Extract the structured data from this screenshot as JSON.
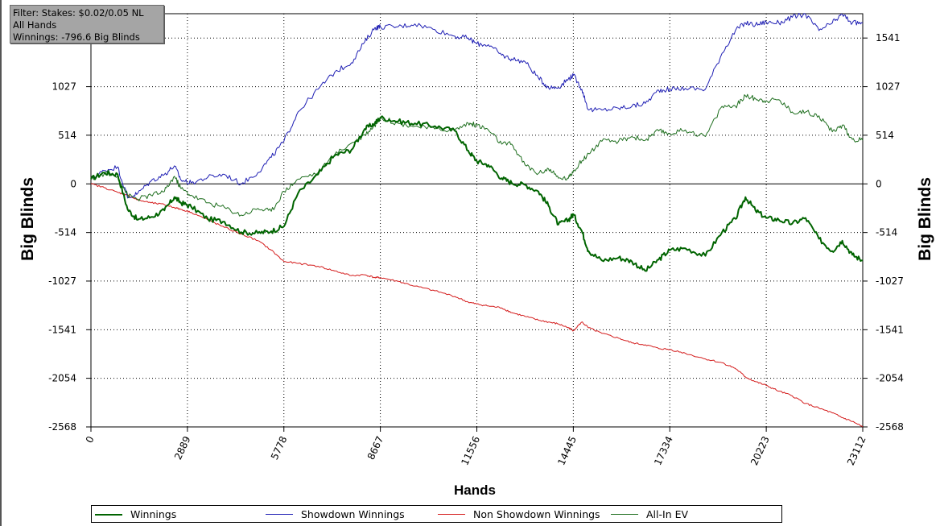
{
  "filter": {
    "line1": "Filter: Stakes: $0.02/0.05 NL",
    "line2": "All Hands",
    "line3": "Winnings: -796.6 Big Blinds"
  },
  "chart_data": {
    "type": "line",
    "title": "",
    "xlabel": "Hands",
    "ylabel": "Big Blinds",
    "xlim": [
      0,
      23112
    ],
    "ylim": [
      -2568,
      1798
    ],
    "x_ticks": [
      0,
      2889,
      5778,
      8667,
      11556,
      14445,
      17334,
      20223,
      23112
    ],
    "y_ticks": [
      -2568,
      -2054,
      -1541,
      -1027,
      -514,
      0,
      514,
      1027,
      1541
    ],
    "grid": true,
    "legend_position": "bottom",
    "series": [
      {
        "name": "Winnings",
        "color": "#006400",
        "width": 2,
        "points": [
          [
            0,
            50
          ],
          [
            400,
            120
          ],
          [
            800,
            100
          ],
          [
            1100,
            -270
          ],
          [
            1400,
            -380
          ],
          [
            1800,
            -350
          ],
          [
            2200,
            -280
          ],
          [
            2500,
            -140
          ],
          [
            2700,
            -200
          ],
          [
            3000,
            -240
          ],
          [
            3500,
            -370
          ],
          [
            4000,
            -400
          ],
          [
            4500,
            -510
          ],
          [
            5000,
            -520
          ],
          [
            5400,
            -500
          ],
          [
            5778,
            -450
          ],
          [
            6200,
            -100
          ],
          [
            6800,
            100
          ],
          [
            7300,
            300
          ],
          [
            7800,
            360
          ],
          [
            8200,
            580
          ],
          [
            8500,
            640
          ],
          [
            8667,
            700
          ],
          [
            9200,
            660
          ],
          [
            9700,
            640
          ],
          [
            10300,
            610
          ],
          [
            10900,
            560
          ],
          [
            11300,
            350
          ],
          [
            11556,
            240
          ],
          [
            11900,
            200
          ],
          [
            12300,
            60
          ],
          [
            12600,
            10
          ],
          [
            13000,
            -10
          ],
          [
            13400,
            -80
          ],
          [
            13700,
            -230
          ],
          [
            14000,
            -430
          ],
          [
            14300,
            -380
          ],
          [
            14445,
            -320
          ],
          [
            14700,
            -500
          ],
          [
            14900,
            -710
          ],
          [
            15300,
            -810
          ],
          [
            15800,
            -780
          ],
          [
            16200,
            -820
          ],
          [
            16600,
            -920
          ],
          [
            17000,
            -800
          ],
          [
            17334,
            -700
          ],
          [
            17800,
            -680
          ],
          [
            18400,
            -760
          ],
          [
            18900,
            -510
          ],
          [
            19300,
            -370
          ],
          [
            19600,
            -140
          ],
          [
            19900,
            -280
          ],
          [
            20223,
            -360
          ],
          [
            20600,
            -380
          ],
          [
            21000,
            -420
          ],
          [
            21400,
            -360
          ],
          [
            21800,
            -580
          ],
          [
            22200,
            -710
          ],
          [
            22500,
            -600
          ],
          [
            22800,
            -750
          ],
          [
            23112,
            -810
          ]
        ]
      },
      {
        "name": "Showdown Winnings",
        "color": "#1f1fb4",
        "width": 1,
        "points": [
          [
            0,
            50
          ],
          [
            400,
            140
          ],
          [
            800,
            180
          ],
          [
            1100,
            -150
          ],
          [
            1400,
            -100
          ],
          [
            1800,
            30
          ],
          [
            2200,
            100
          ],
          [
            2500,
            190
          ],
          [
            2700,
            40
          ],
          [
            3000,
            10
          ],
          [
            3500,
            70
          ],
          [
            4000,
            100
          ],
          [
            4500,
            0
          ],
          [
            5000,
            120
          ],
          [
            5400,
            280
          ],
          [
            5778,
            450
          ],
          [
            6200,
            760
          ],
          [
            6800,
            1000
          ],
          [
            7300,
            1180
          ],
          [
            7800,
            1280
          ],
          [
            8200,
            1500
          ],
          [
            8500,
            1650
          ],
          [
            8667,
            1660
          ],
          [
            9200,
            1660
          ],
          [
            9700,
            1690
          ],
          [
            10300,
            1630
          ],
          [
            10900,
            1560
          ],
          [
            11300,
            1540
          ],
          [
            11556,
            1480
          ],
          [
            11900,
            1470
          ],
          [
            12300,
            1360
          ],
          [
            12600,
            1320
          ],
          [
            13000,
            1290
          ],
          [
            13400,
            1120
          ],
          [
            13700,
            1020
          ],
          [
            14000,
            1020
          ],
          [
            14300,
            1110
          ],
          [
            14445,
            1150
          ],
          [
            14700,
            1000
          ],
          [
            14900,
            780
          ],
          [
            15300,
            780
          ],
          [
            15800,
            800
          ],
          [
            16200,
            820
          ],
          [
            16600,
            850
          ],
          [
            17000,
            990
          ],
          [
            17334,
            1000
          ],
          [
            17800,
            1010
          ],
          [
            18400,
            1000
          ],
          [
            18900,
            1380
          ],
          [
            19300,
            1620
          ],
          [
            19600,
            1700
          ],
          [
            19900,
            1680
          ],
          [
            20223,
            1710
          ],
          [
            20600,
            1700
          ],
          [
            21000,
            1760
          ],
          [
            21400,
            1790
          ],
          [
            21800,
            1620
          ],
          [
            22200,
            1700
          ],
          [
            22500,
            1790
          ],
          [
            22800,
            1700
          ],
          [
            23112,
            1700
          ]
        ]
      },
      {
        "name": "Non Showdown Winnings",
        "color": "#d41c1c",
        "width": 1,
        "points": [
          [
            0,
            0
          ],
          [
            400,
            -40
          ],
          [
            800,
            -90
          ],
          [
            1100,
            -120
          ],
          [
            1400,
            -170
          ],
          [
            1800,
            -200
          ],
          [
            2200,
            -220
          ],
          [
            2500,
            -250
          ],
          [
            2700,
            -270
          ],
          [
            3000,
            -300
          ],
          [
            3500,
            -380
          ],
          [
            4000,
            -460
          ],
          [
            4500,
            -530
          ],
          [
            5000,
            -600
          ],
          [
            5400,
            -700
          ],
          [
            5778,
            -820
          ],
          [
            6200,
            -840
          ],
          [
            6800,
            -870
          ],
          [
            7300,
            -920
          ],
          [
            7800,
            -970
          ],
          [
            8200,
            -960
          ],
          [
            8500,
            -990
          ],
          [
            8667,
            -990
          ],
          [
            9200,
            -1030
          ],
          [
            9700,
            -1080
          ],
          [
            10300,
            -1130
          ],
          [
            10900,
            -1190
          ],
          [
            11300,
            -1250
          ],
          [
            11556,
            -1270
          ],
          [
            11900,
            -1290
          ],
          [
            12300,
            -1310
          ],
          [
            12600,
            -1360
          ],
          [
            13000,
            -1400
          ],
          [
            13400,
            -1440
          ],
          [
            13700,
            -1460
          ],
          [
            14000,
            -1480
          ],
          [
            14300,
            -1520
          ],
          [
            14445,
            -1550
          ],
          [
            14700,
            -1460
          ],
          [
            14900,
            -1520
          ],
          [
            15300,
            -1580
          ],
          [
            15800,
            -1630
          ],
          [
            16200,
            -1680
          ],
          [
            16600,
            -1700
          ],
          [
            17000,
            -1740
          ],
          [
            17334,
            -1750
          ],
          [
            17800,
            -1790
          ],
          [
            18400,
            -1850
          ],
          [
            18900,
            -1890
          ],
          [
            19300,
            -1950
          ],
          [
            19600,
            -2040
          ],
          [
            19900,
            -2090
          ],
          [
            20223,
            -2130
          ],
          [
            20600,
            -2190
          ],
          [
            21000,
            -2240
          ],
          [
            21400,
            -2320
          ],
          [
            21800,
            -2370
          ],
          [
            22200,
            -2420
          ],
          [
            22500,
            -2470
          ],
          [
            22800,
            -2510
          ],
          [
            23112,
            -2568
          ]
        ]
      },
      {
        "name": "All-In EV",
        "color": "#1e6e1e",
        "width": 1,
        "points": [
          [
            0,
            50
          ],
          [
            400,
            110
          ],
          [
            800,
            80
          ],
          [
            1100,
            -120
          ],
          [
            1400,
            -160
          ],
          [
            1800,
            -120
          ],
          [
            2200,
            -80
          ],
          [
            2500,
            80
          ],
          [
            2700,
            -50
          ],
          [
            3000,
            -120
          ],
          [
            3500,
            -200
          ],
          [
            4000,
            -250
          ],
          [
            4500,
            -330
          ],
          [
            5000,
            -260
          ],
          [
            5400,
            -290
          ],
          [
            5778,
            -80
          ],
          [
            6200,
            50
          ],
          [
            6800,
            120
          ],
          [
            7300,
            310
          ],
          [
            7800,
            430
          ],
          [
            8200,
            520
          ],
          [
            8500,
            620
          ],
          [
            8667,
            700
          ],
          [
            9200,
            640
          ],
          [
            9700,
            610
          ],
          [
            10300,
            580
          ],
          [
            10900,
            570
          ],
          [
            11300,
            640
          ],
          [
            11556,
            620
          ],
          [
            11900,
            570
          ],
          [
            12300,
            420
          ],
          [
            12600,
            420
          ],
          [
            13000,
            200
          ],
          [
            13400,
            110
          ],
          [
            13700,
            160
          ],
          [
            14000,
            60
          ],
          [
            14300,
            60
          ],
          [
            14445,
            140
          ],
          [
            14700,
            240
          ],
          [
            14900,
            320
          ],
          [
            15300,
            450
          ],
          [
            15800,
            450
          ],
          [
            16200,
            500
          ],
          [
            16600,
            460
          ],
          [
            17000,
            560
          ],
          [
            17334,
            530
          ],
          [
            17800,
            570
          ],
          [
            18400,
            500
          ],
          [
            18900,
            820
          ],
          [
            19300,
            820
          ],
          [
            19600,
            930
          ],
          [
            19900,
            900
          ],
          [
            20223,
            880
          ],
          [
            20600,
            890
          ],
          [
            21000,
            760
          ],
          [
            21400,
            760
          ],
          [
            21800,
            720
          ],
          [
            22200,
            550
          ],
          [
            22500,
            620
          ],
          [
            22800,
            470
          ],
          [
            23112,
            460
          ]
        ]
      }
    ]
  }
}
